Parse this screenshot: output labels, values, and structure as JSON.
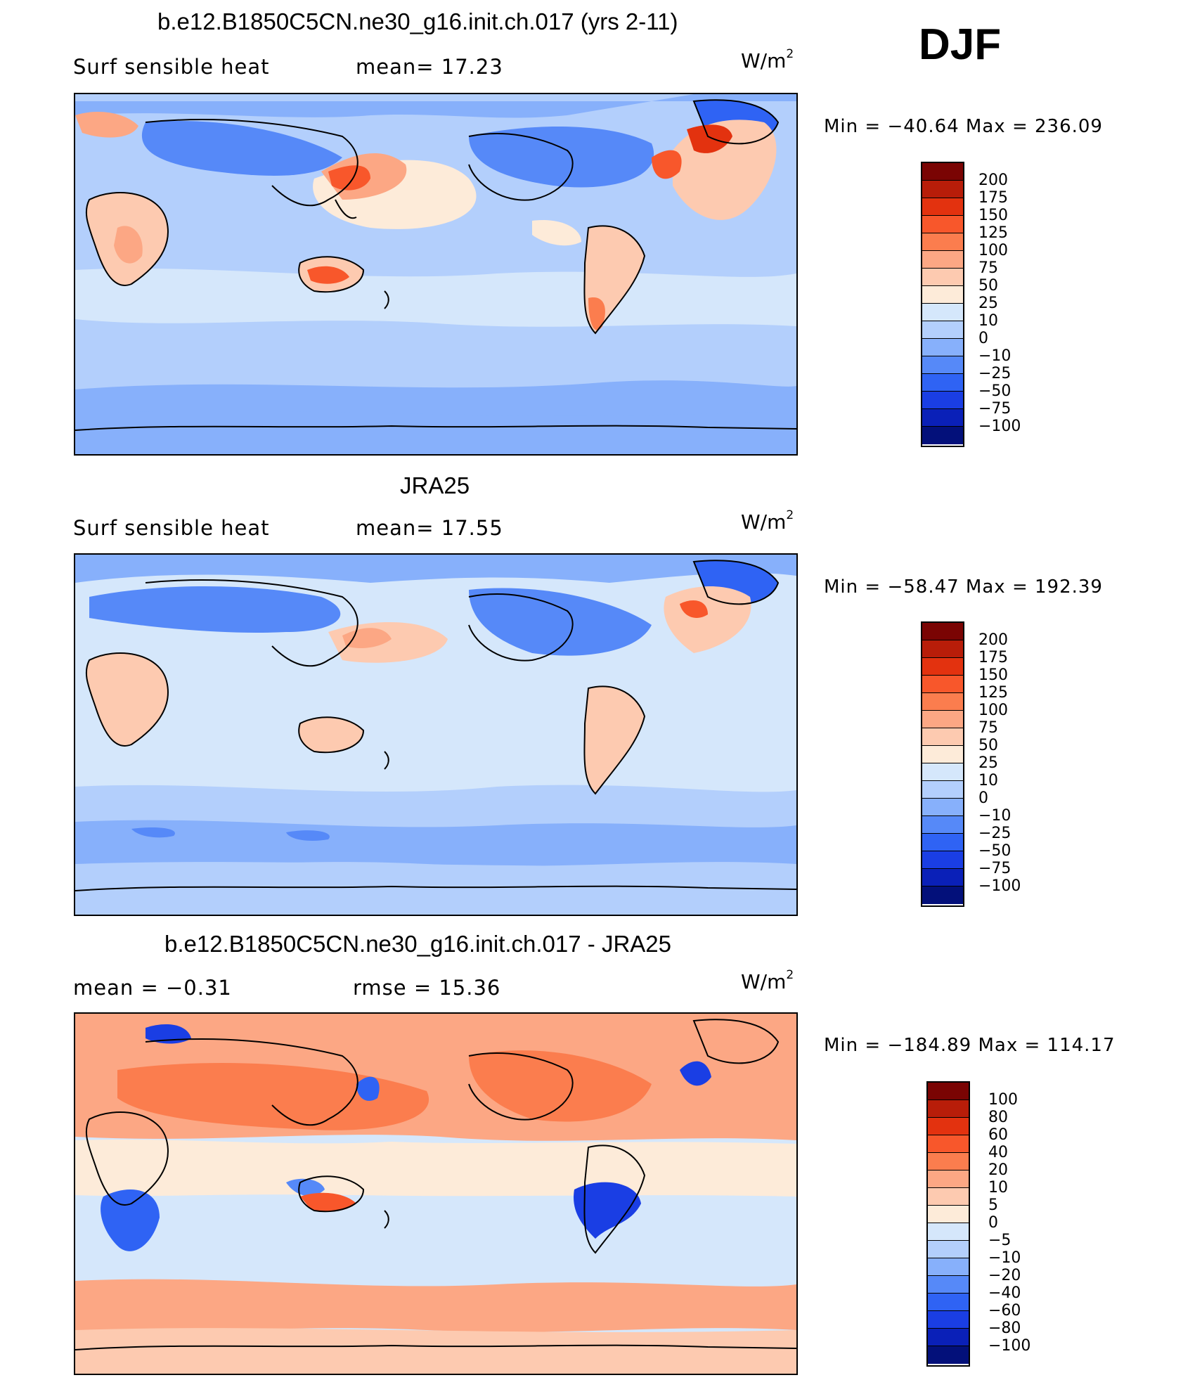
{
  "season": "DJF",
  "panels": [
    {
      "id": "model",
      "title": "b.e12.B1850C5CN.ne30_g16.init.ch.017 (yrs 2-11)",
      "left_label": "Surf  sensible  heat",
      "center_label": "mean=   17.23",
      "units": "W/m",
      "units_exp": "2",
      "minmax": "Min  =  −40.64  Max  =  236.09",
      "colorbar_labels": [
        "200",
        "175",
        "150",
        "125",
        "100",
        "75",
        "50",
        "25",
        "10",
        "0",
        "−10",
        "−25",
        "−50",
        "−75",
        "−100"
      ],
      "colorbar_colors": [
        "#7a0403",
        "#b81d09",
        "#e3320f",
        "#f8572b",
        "#fb7d4e",
        "#fca784",
        "#fdcab0",
        "#fdebd9",
        "#d5e7fb",
        "#b3cffc",
        "#87b0fb",
        "#5689f8",
        "#2f63f4",
        "#1a3ee4",
        "#0a20b8",
        "#03107a"
      ]
    },
    {
      "id": "obs",
      "title": "JRA25",
      "left_label": "Surf  sensible  heat",
      "center_label": "mean=   17.55",
      "units": "W/m",
      "units_exp": "2",
      "minmax": "Min  =  −58.47  Max  =  192.39",
      "colorbar_labels": [
        "200",
        "175",
        "150",
        "125",
        "100",
        "75",
        "50",
        "25",
        "10",
        "0",
        "−10",
        "−25",
        "−50",
        "−75",
        "−100"
      ],
      "colorbar_colors": [
        "#7a0403",
        "#b81d09",
        "#e3320f",
        "#f8572b",
        "#fb7d4e",
        "#fca784",
        "#fdcab0",
        "#fdebd9",
        "#d5e7fb",
        "#b3cffc",
        "#87b0fb",
        "#5689f8",
        "#2f63f4",
        "#1a3ee4",
        "#0a20b8",
        "#03107a"
      ]
    },
    {
      "id": "diff",
      "title": "b.e12.B1850C5CN.ne30_g16.init.ch.017 - JRA25",
      "left_label": "mean  =    −0.31",
      "center_label": "rmse  =    15.36",
      "units": "W/m",
      "units_exp": "2",
      "minmax": "Min  =  −184.89  Max  =  114.17",
      "colorbar_labels": [
        "100",
        "80",
        "60",
        "40",
        "20",
        "10",
        "5",
        "0",
        "−5",
        "−10",
        "−20",
        "−40",
        "−60",
        "−80",
        "−100"
      ],
      "colorbar_colors": [
        "#7a0403",
        "#b81d09",
        "#e3320f",
        "#f8572b",
        "#fb7d4e",
        "#fca784",
        "#fdcab0",
        "#fdebd9",
        "#d5e7fb",
        "#b3cffc",
        "#87b0fb",
        "#5689f8",
        "#2f63f4",
        "#1a3ee4",
        "#0a20b8",
        "#03107a"
      ]
    }
  ]
}
